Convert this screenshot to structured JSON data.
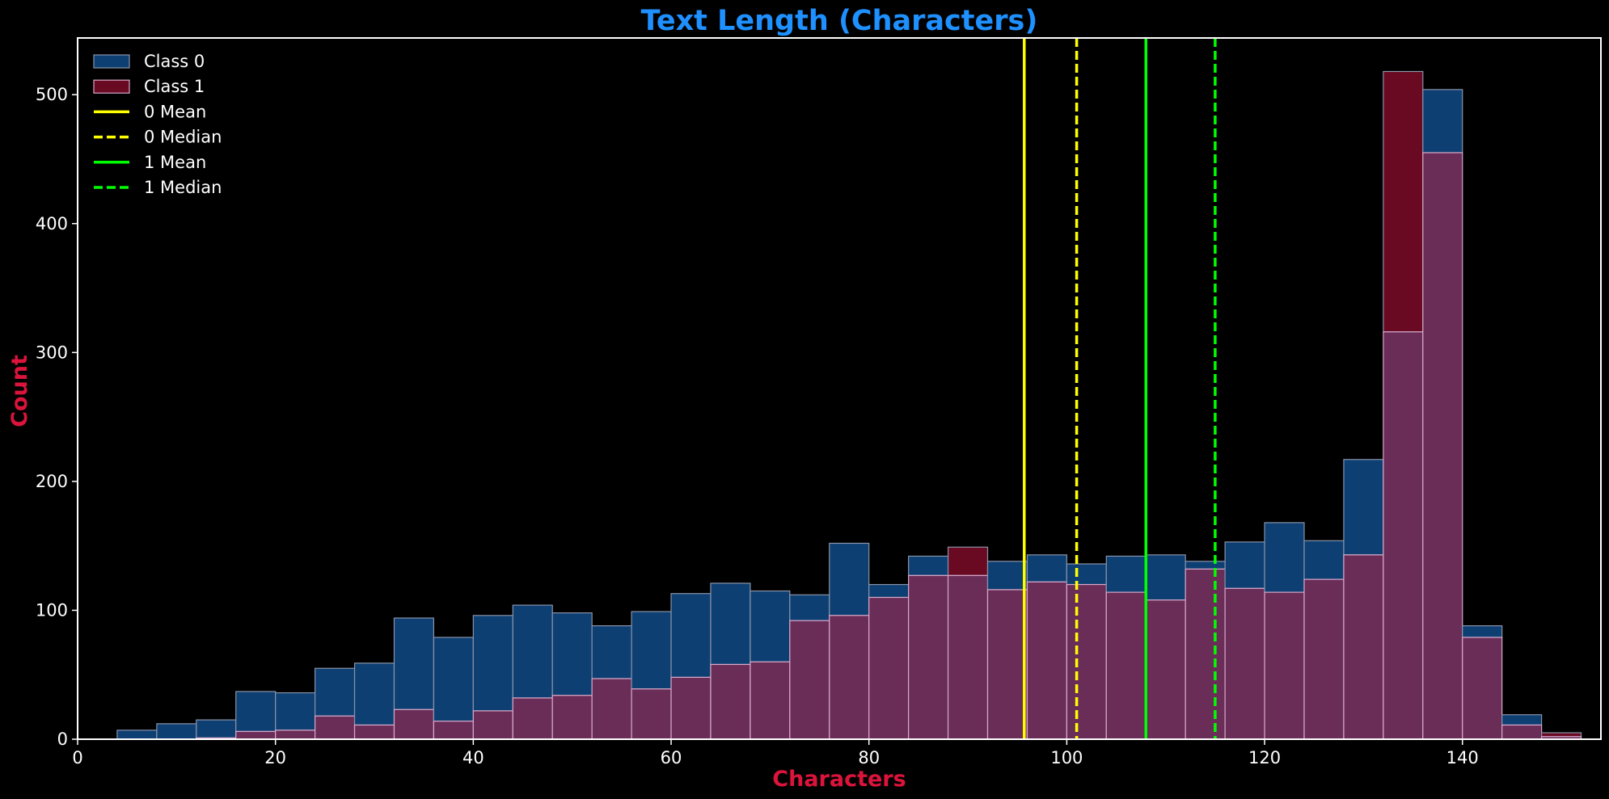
{
  "chart_data": {
    "type": "bar",
    "title": "Text Length (Characters)",
    "xlabel": "Characters",
    "ylabel": "Count",
    "xlim": [
      0,
      154
    ],
    "ylim": [
      0,
      544
    ],
    "xticks": [
      0,
      20,
      40,
      60,
      80,
      100,
      120,
      140
    ],
    "yticks": [
      0,
      100,
      200,
      300,
      400,
      500
    ],
    "bin_edges": [
      4,
      8,
      12,
      16,
      20,
      24,
      28,
      32,
      36,
      40,
      44,
      48,
      52,
      56,
      60,
      64,
      68,
      72,
      76,
      80,
      84,
      88,
      92,
      96,
      100,
      104,
      108,
      112,
      116,
      120,
      124,
      128,
      132,
      136,
      140,
      144,
      148,
      152
    ],
    "series": [
      {
        "name": "Class 0",
        "color": "#0d3f73",
        "values": [
          7,
          12,
          15,
          37,
          36,
          55,
          59,
          94,
          79,
          96,
          104,
          98,
          88,
          99,
          113,
          121,
          115,
          112,
          152,
          120,
          142,
          127,
          138,
          143,
          136,
          142,
          143,
          138,
          153,
          168,
          154,
          217,
          316,
          504,
          88,
          19,
          2
        ]
      },
      {
        "name": "Class 1",
        "color": "#6a0a22",
        "values": [
          0,
          0,
          1,
          6,
          7,
          18,
          11,
          23,
          14,
          22,
          32,
          34,
          47,
          39,
          48,
          58,
          60,
          92,
          96,
          110,
          127,
          149,
          116,
          122,
          120,
          114,
          108,
          132,
          117,
          114,
          124,
          143,
          518,
          455,
          79,
          11,
          5
        ]
      }
    ],
    "lines": [
      {
        "name": "0 Mean",
        "x": 95.7,
        "color": "#ffff00",
        "style": "solid"
      },
      {
        "name": "0 Median",
        "x": 101,
        "color": "#ffff00",
        "style": "dashed"
      },
      {
        "name": "1 Mean",
        "x": 108,
        "color": "#00ff00",
        "style": "solid"
      },
      {
        "name": "1 Median",
        "x": 115,
        "color": "#00ff00",
        "style": "dashed"
      }
    ],
    "overlap_color": "#6a2d58",
    "legend_position": "top-left",
    "grid": false
  }
}
